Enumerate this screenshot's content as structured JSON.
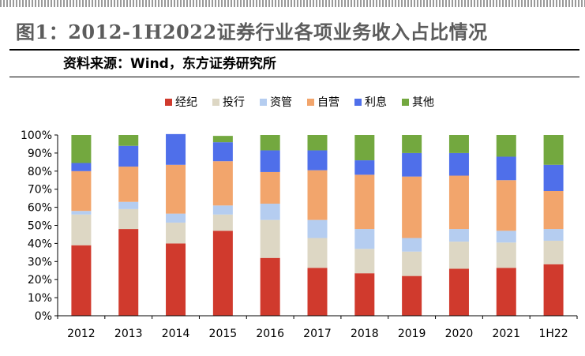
{
  "header": {
    "title": "图1：2012-1H2022证券行业各项业务收入占比情况",
    "source": "资料来源：Wind，东方证券研究所"
  },
  "chart_data": {
    "type": "bar",
    "stacked": true,
    "categories": [
      "2012",
      "2013",
      "2014",
      "2015",
      "2016",
      "2017",
      "2018",
      "2019",
      "2020",
      "2021",
      "1H22"
    ],
    "ylim": [
      0,
      100
    ],
    "yticks": [
      "0%",
      "10%",
      "20%",
      "30%",
      "40%",
      "50%",
      "60%",
      "70%",
      "80%",
      "90%",
      "100%"
    ],
    "legend_position": "top",
    "grid": false,
    "series": [
      {
        "name": "经纪",
        "color": "#d03a2d",
        "values": [
          39,
          48,
          40,
          47,
          32,
          26.5,
          23.5,
          22,
          26,
          26.5,
          28.5
        ]
      },
      {
        "name": "投行",
        "color": "#ddd7c4",
        "values": [
          17,
          11,
          11.5,
          9,
          21,
          16.5,
          13.5,
          13.5,
          15,
          14,
          13
        ]
      },
      {
        "name": "资管",
        "color": "#b5cdf0",
        "values": [
          2,
          4,
          5,
          5,
          9,
          10,
          11,
          7.5,
          7,
          6.5,
          6.5
        ]
      },
      {
        "name": "自营",
        "color": "#f2a56c",
        "values": [
          22,
          19.5,
          27,
          24.5,
          17.5,
          27.5,
          30,
          34,
          29.5,
          28,
          21
        ]
      },
      {
        "name": "利息",
        "color": "#4f6fea",
        "values": [
          4.5,
          11.5,
          17,
          10.5,
          12,
          11,
          8,
          13,
          12.5,
          13,
          14.5
        ]
      },
      {
        "name": "其他",
        "color": "#73a83f",
        "values": [
          15.5,
          6,
          0,
          3.5,
          8.5,
          8.5,
          14,
          10,
          10,
          12,
          16.5
        ]
      }
    ]
  }
}
